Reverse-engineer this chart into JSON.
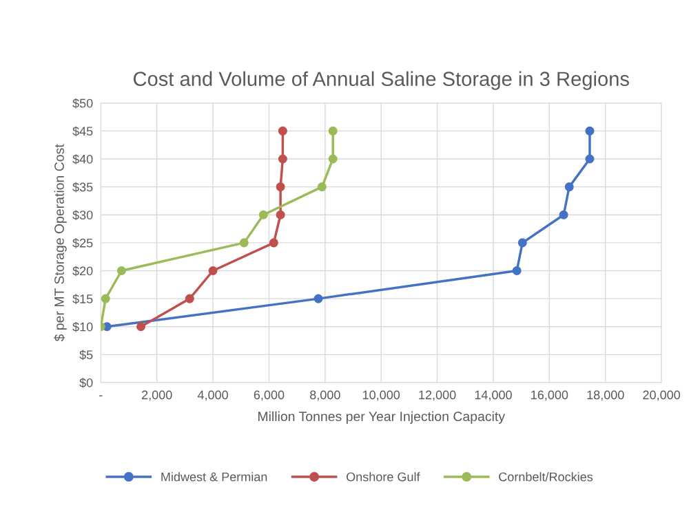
{
  "chart_data": {
    "type": "line",
    "title": "Cost and Volume of Annual Saline Storage in 3 Regions",
    "xlabel": "Million Tonnes per Year Injection Capacity",
    "ylabel": "$ per MT Storage Operation Cost",
    "series": [
      {
        "name": "Midwest & Permian",
        "color": "#4472c4",
        "x": [
          220,
          7760,
          14840,
          15040,
          16510,
          16710,
          17440,
          17440
        ],
        "values": [
          10,
          15,
          20,
          25,
          30,
          35,
          40,
          45
        ]
      },
      {
        "name": "Onshore Gulf",
        "color": "#c0504d",
        "x": [
          1430,
          3170,
          4000,
          6170,
          6410,
          6410,
          6490,
          6490
        ],
        "values": [
          10,
          15,
          20,
          25,
          30,
          35,
          40,
          45
        ]
      },
      {
        "name": "Cornbelt/Rockies",
        "color": "#9bbb59",
        "x": [
          0,
          170,
          740,
          5110,
          5800,
          7890,
          8280,
          8280
        ],
        "values": [
          10,
          15,
          20,
          25,
          30,
          35,
          40,
          45
        ]
      }
    ],
    "xlim": [
      0,
      20000
    ],
    "xticks": [
      {
        "value": 0,
        "label": "-"
      },
      {
        "value": 2000,
        "label": "2,000"
      },
      {
        "value": 4000,
        "label": "4,000"
      },
      {
        "value": 6000,
        "label": "6,000"
      },
      {
        "value": 8000,
        "label": "8,000"
      },
      {
        "value": 10000,
        "label": "10,000"
      },
      {
        "value": 12000,
        "label": "12,000"
      },
      {
        "value": 14000,
        "label": "14,000"
      },
      {
        "value": 16000,
        "label": "16,000"
      },
      {
        "value": 18000,
        "label": "18,000"
      },
      {
        "value": 20000,
        "label": "20,000"
      }
    ],
    "ylim": [
      0,
      50
    ],
    "yticks": [
      {
        "value": 0,
        "label": "$0"
      },
      {
        "value": 5,
        "label": "$5"
      },
      {
        "value": 10,
        "label": "$10"
      },
      {
        "value": 15,
        "label": "$15"
      },
      {
        "value": 20,
        "label": "$20"
      },
      {
        "value": 25,
        "label": "$25"
      },
      {
        "value": 30,
        "label": "$30"
      },
      {
        "value": 35,
        "label": "$35"
      },
      {
        "value": 40,
        "label": "$40"
      },
      {
        "value": 45,
        "label": "$45"
      },
      {
        "value": 50,
        "label": "$50"
      }
    ],
    "grid": true,
    "legend": "bottom",
    "marker": "circle",
    "line_style": "solid"
  }
}
